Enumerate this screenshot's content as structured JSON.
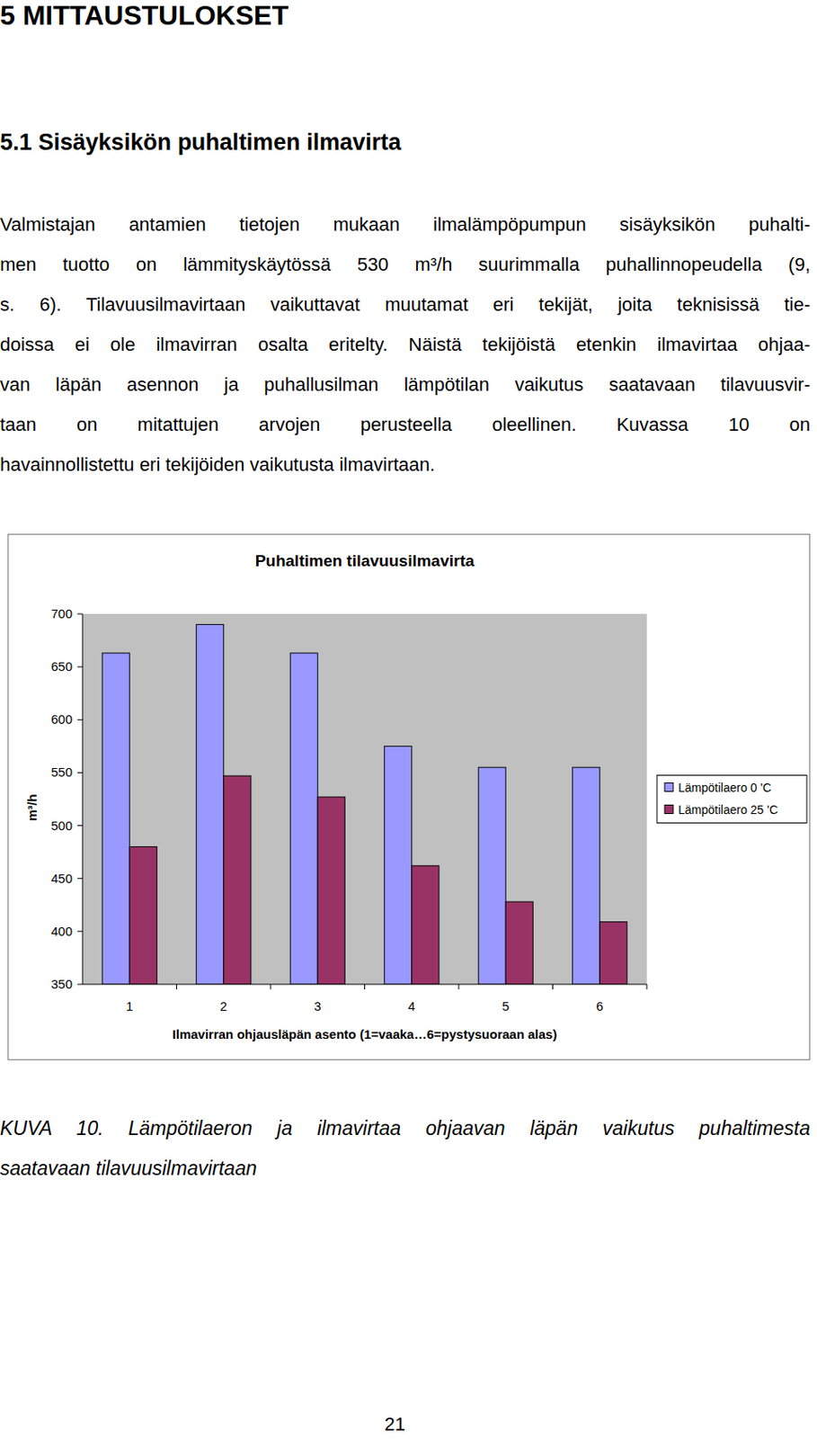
{
  "heading": "5 MITTAUSTULOKSET",
  "section": "5.1 Sisäyksikön puhaltimen ilmavirta",
  "paragraph": {
    "lines": [
      "Valmistajan antamien tietojen mukaan ilmalämpöpumpun sisäyksikön puhalti-",
      "men tuotto on lämmityskäytössä 530 m³/h suurimmalla puhallinnopeudella (9,",
      "s. 6). Tilavuusilmavirtaan vaikuttavat muutamat eri tekijät, joita teknisissä tie-",
      "doissa ei ole ilmavirran osalta eritelty. Näistä tekijöistä etenkin ilmavirtaa ohjaa-",
      "van läpän asennon ja puhallusilman lämpötilan vaikutus saatavaan tilavuusvir-",
      "taan on mitattujen arvojen perusteella oleellinen. Kuvassa 10 on",
      "havainnollistettu eri tekijöiden vaikutusta ilmavirtaan."
    ]
  },
  "chart_data": {
    "type": "bar",
    "title": "Puhaltimen tilavuusilmavirta",
    "x_label": "Ilmavirran ohjausläpän asento (1=vaaka…6=pystysuoraan alas)",
    "y_label": "m³/h",
    "categories": [
      "1",
      "2",
      "3",
      "4",
      "5",
      "6"
    ],
    "series": [
      {
        "name": "Lämpötilaero 0 'C",
        "color": "#9999ff",
        "values": [
          663,
          690,
          663,
          575,
          555,
          555
        ]
      },
      {
        "name": "Lämpötilaero 25 'C",
        "color": "#993366",
        "values": [
          480,
          547,
          527,
          462,
          428,
          409
        ]
      }
    ],
    "ylim": [
      350,
      700
    ],
    "yticks": [
      350,
      400,
      450,
      500,
      550,
      600,
      650,
      700
    ],
    "grid": false,
    "legend": "right"
  },
  "caption": {
    "lines": [
      "KUVA 10. Lämpötilaeron ja ilmavirtaa ohjaavan läpän vaikutus puhaltimesta",
      "saatavaan tilavuusilmavirtaan"
    ]
  },
  "page_number": "21"
}
